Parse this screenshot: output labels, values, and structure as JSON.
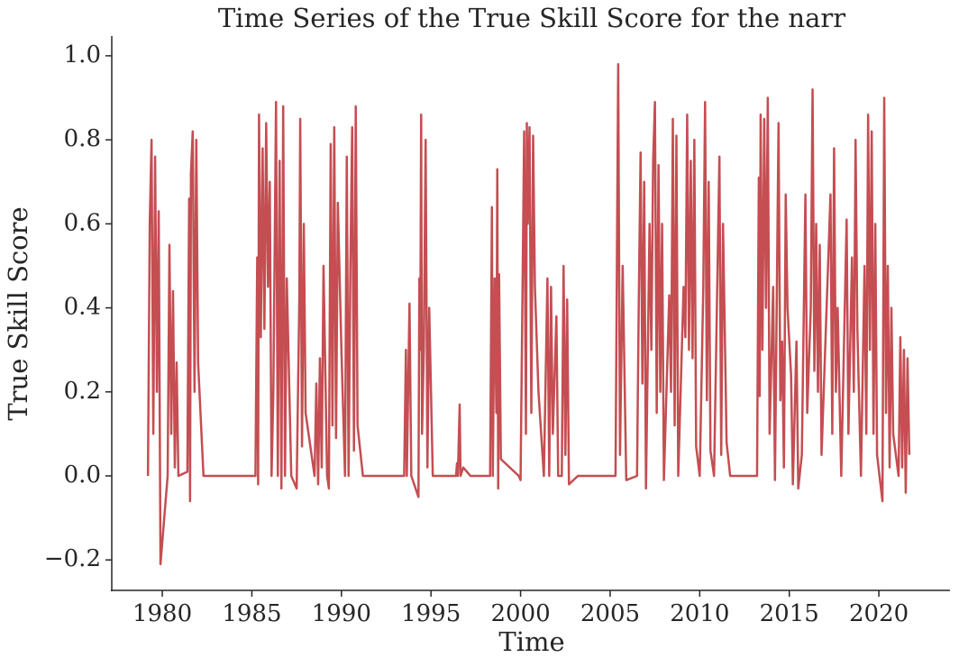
{
  "chart_data": {
    "type": "line",
    "title": "Time Series of the True Skill Score for the narr",
    "xlabel": "Time",
    "ylabel": "True Skill Score",
    "color": "#c44e52",
    "xlim": [
      1977.18,
      2023.97
    ],
    "ylim": [
      -0.2725,
      1.047
    ],
    "xticks": [
      1980,
      1985,
      1990,
      1995,
      2000,
      2005,
      2010,
      2015,
      2020
    ],
    "yticks": [
      {
        "value": -0.2,
        "label": "−0.2"
      },
      {
        "value": 0,
        "label": "0.0"
      },
      {
        "value": 0.2,
        "label": "0.2"
      },
      {
        "value": 0.4,
        "label": "0.4"
      },
      {
        "value": 0.6,
        "label": "0.6"
      },
      {
        "value": 0.8,
        "label": "0.8"
      },
      {
        "value": 1,
        "label": "1.0"
      }
    ],
    "x": [
      1979.2,
      1979.3,
      1979.4,
      1979.5,
      1979.6,
      1979.7,
      1979.8,
      1979.9,
      1980.3,
      1980.4,
      1980.5,
      1980.6,
      1980.7,
      1980.8,
      1980.9,
      1981.4,
      1981.5,
      1981.55,
      1981.6,
      1981.7,
      1981.8,
      1981.9,
      1982.0,
      1982.3,
      1985.2,
      1985.3,
      1985.35,
      1985.4,
      1985.5,
      1985.6,
      1985.7,
      1985.8,
      1985.9,
      1986.0,
      1986.1,
      1986.2,
      1986.35,
      1986.45,
      1986.55,
      1986.65,
      1986.75,
      1986.85,
      1986.95,
      1987.2,
      1987.5,
      1987.65,
      1987.7,
      1987.8,
      1987.9,
      1988.0,
      1988.5,
      1988.6,
      1988.7,
      1988.8,
      1988.9,
      1989.0,
      1989.2,
      1989.3,
      1989.4,
      1989.5,
      1989.6,
      1989.7,
      1989.8,
      1990.0,
      1990.2,
      1990.3,
      1990.4,
      1990.5,
      1990.6,
      1990.7,
      1990.8,
      1990.9,
      1991.2,
      1993.5,
      1993.6,
      1993.65,
      1993.8,
      1993.9,
      1994.3,
      1994.35,
      1994.4,
      1994.45,
      1994.5,
      1994.6,
      1994.7,
      1994.8,
      1994.9,
      1995.1,
      1996.4,
      1996.45,
      1996.5,
      1996.6,
      1996.65,
      1996.8,
      1997.2,
      1998.3,
      1998.4,
      1998.45,
      1998.55,
      1998.65,
      1998.7,
      1998.75,
      1998.8,
      1998.9,
      1999.9,
      2000.0,
      2000.2,
      2000.3,
      2000.35,
      2000.4,
      2000.5,
      2000.6,
      2000.7,
      2000.8,
      2001.0,
      2001.3,
      2001.5,
      2001.6,
      2001.7,
      2001.8,
      2002.0,
      2002.1,
      2002.3,
      2002.4,
      2002.5,
      2002.6,
      2002.7,
      2003.2,
      2005.3,
      2005.45,
      2005.55,
      2005.7,
      2005.9,
      2006.5,
      2006.6,
      2006.7,
      2006.8,
      2006.9,
      2007.0,
      2007.2,
      2007.3,
      2007.4,
      2007.5,
      2007.6,
      2007.7,
      2007.8,
      2007.9,
      2008.0,
      2008.3,
      2008.4,
      2008.5,
      2008.6,
      2008.7,
      2008.8,
      2009.1,
      2009.2,
      2009.3,
      2009.4,
      2009.5,
      2009.6,
      2009.7,
      2009.8,
      2010.0,
      2010.2,
      2010.3,
      2010.4,
      2010.5,
      2010.6,
      2010.8,
      2011.1,
      2011.2,
      2011.3,
      2011.5,
      2011.7,
      2013.2,
      2013.3,
      2013.35,
      2013.4,
      2013.5,
      2013.6,
      2013.7,
      2013.8,
      2013.9,
      2014.1,
      2014.2,
      2014.4,
      2014.5,
      2014.6,
      2014.7,
      2014.8,
      2014.9,
      2015.1,
      2015.2,
      2015.4,
      2015.5,
      2015.7,
      2015.9,
      2016.0,
      2016.2,
      2016.3,
      2016.4,
      2016.5,
      2016.6,
      2016.7,
      2016.8,
      2017.3,
      2017.4,
      2017.5,
      2017.6,
      2017.7,
      2017.9,
      2018.2,
      2018.3,
      2018.5,
      2018.6,
      2018.7,
      2018.8,
      2019.0,
      2019.2,
      2019.3,
      2019.4,
      2019.5,
      2019.6,
      2019.7,
      2019.8,
      2019.9,
      2020.2,
      2020.3,
      2020.4,
      2020.5,
      2020.6,
      2020.7,
      2020.8,
      2021.1,
      2021.2,
      2021.3,
      2021.4,
      2021.5,
      2021.6,
      2021.7
    ],
    "values": [
      0,
      0.6,
      0.8,
      0.1,
      0.76,
      0.2,
      0.63,
      -0.21,
      0,
      0.55,
      0.1,
      0.44,
      0.02,
      0.27,
      0,
      0.01,
      0.66,
      -0.06,
      0.72,
      0.82,
      0.2,
      0.8,
      0.27,
      0,
      0,
      0.52,
      -0.02,
      0.86,
      0.33,
      0.78,
      0.35,
      0.84,
      0.45,
      0.7,
      0,
      0.2,
      0.89,
      0,
      0.75,
      -0.03,
      0.88,
      0,
      0.47,
      0,
      -0.03,
      0.42,
      0.85,
      0.07,
      0.6,
      0.15,
      0,
      0.22,
      -0.02,
      0.28,
      0.02,
      0.5,
      0,
      -0.03,
      0.79,
      0.12,
      0.83,
      0.09,
      0.65,
      0.3,
      0,
      0.76,
      0,
      0.5,
      0.83,
      0.06,
      0.88,
      0.12,
      0,
      0,
      0.3,
      0,
      0.41,
      0,
      -0.05,
      0.47,
      0.3,
      0.86,
      0.1,
      0.3,
      0.8,
      0.02,
      0.4,
      0,
      0,
      0.03,
      0,
      0.17,
      0,
      0.02,
      0,
      0,
      0.64,
      0,
      0.47,
      0.15,
      0.73,
      -0.03,
      0.48,
      0.04,
      0,
      -0.01,
      0.82,
      0.1,
      0.84,
      0.6,
      0.83,
      0.15,
      0.81,
      0.45,
      0.2,
      0,
      0.47,
      0,
      0.45,
      0.1,
      0.38,
      0,
      0,
      0.5,
      0.05,
      0.42,
      -0.02,
      0,
      0,
      0.98,
      0.05,
      0.5,
      -0.01,
      0,
      0.42,
      0.77,
      0.22,
      0.7,
      -0.03,
      0.6,
      0.3,
      0.75,
      0.89,
      0.15,
      0.74,
      0.2,
      0.6,
      -0.01,
      0.43,
      0.2,
      0.85,
      0.12,
      0.81,
      0,
      0.45,
      0.33,
      0.86,
      0.3,
      0.75,
      0.28,
      0.8,
      0.07,
      0,
      0.45,
      0.89,
      0.18,
      0.7,
      0.06,
      0,
      0.76,
      0.05,
      0.6,
      0.08,
      0,
      0,
      0.71,
      0.19,
      0.86,
      0.3,
      0.85,
      0.4,
      0.9,
      0.1,
      0.45,
      -0.01,
      0.84,
      0.18,
      0.32,
      0.02,
      0.67,
      0.4,
      0.24,
      -0.02,
      0.32,
      -0.03,
      0.05,
      0.67,
      0.15,
      0.4,
      0.92,
      0.25,
      0.6,
      0.2,
      0.55,
      0.05,
      0.67,
      0.1,
      0.78,
      0.2,
      0.4,
      0,
      0.61,
      0.1,
      0.52,
      0.2,
      0.8,
      0.35,
      0,
      0.5,
      0.1,
      0.86,
      0.3,
      0.82,
      0.1,
      0.6,
      0.05,
      -0.06,
      0.9,
      0.15,
      0.5,
      0.02,
      0.4,
      0.1,
      0,
      0.33,
      0.02,
      0.3,
      -0.04,
      0.28,
      0.05
    ]
  }
}
